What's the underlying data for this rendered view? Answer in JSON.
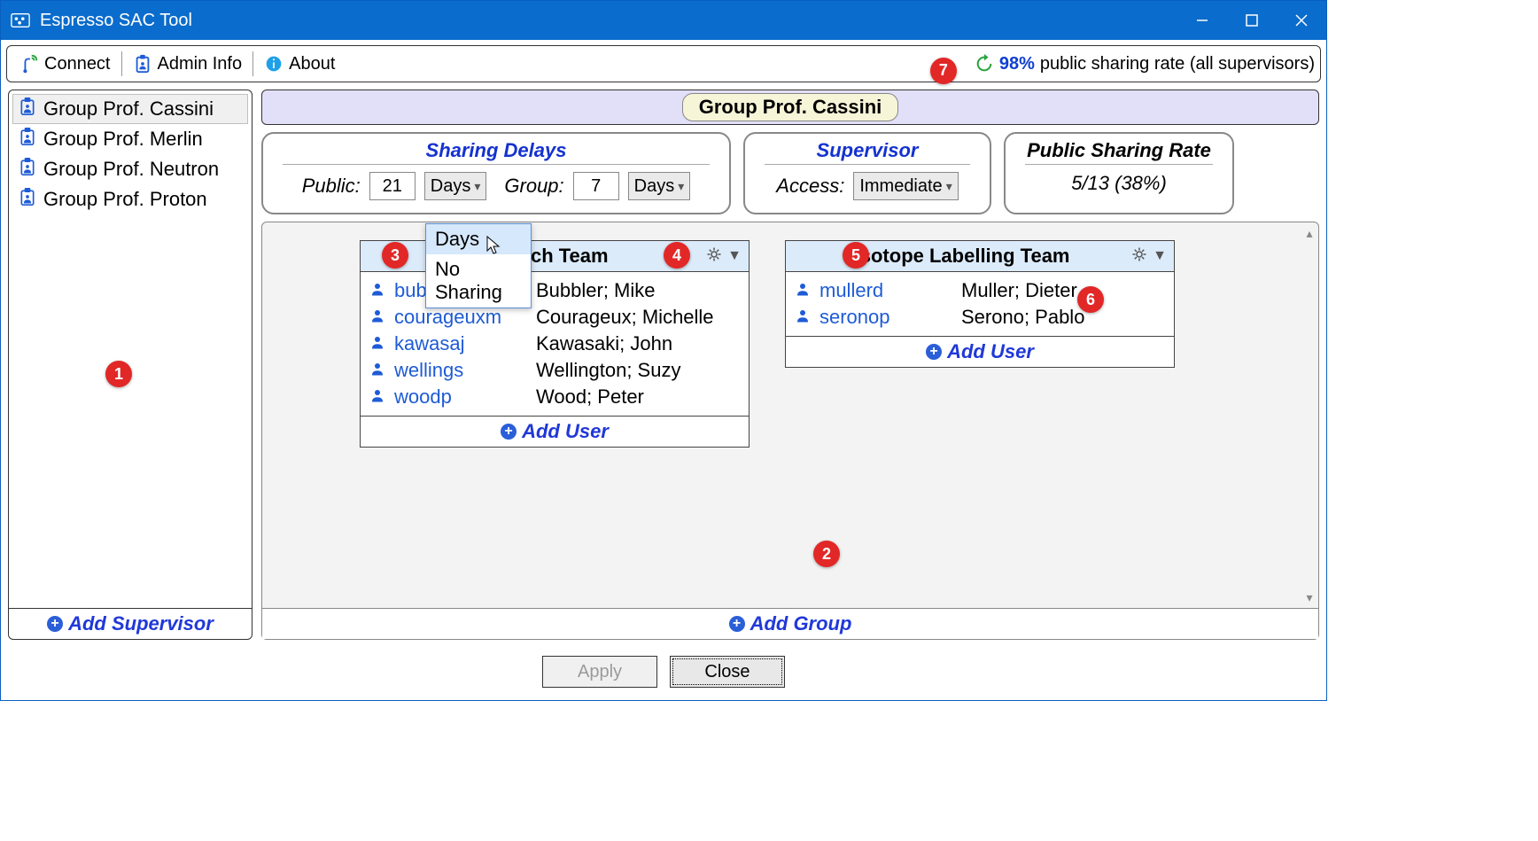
{
  "window": {
    "title": "Espresso SAC Tool"
  },
  "toolbar": {
    "connect": "Connect",
    "admin": "Admin Info",
    "about": "About",
    "rate_pct": "98%",
    "rate_tail": "public sharing rate (all supervisors)"
  },
  "sidebar": {
    "items": [
      {
        "label": "Group Prof. Cassini",
        "selected": true
      },
      {
        "label": "Group Prof. Merlin",
        "selected": false
      },
      {
        "label": "Group Prof. Neutron",
        "selected": false
      },
      {
        "label": "Group Prof. Proton",
        "selected": false
      }
    ],
    "add_label": "Add Supervisor"
  },
  "group": {
    "name": "Group Prof. Cassini",
    "sharing": {
      "title": "Sharing Delays",
      "public_label": "Public:",
      "public_value": "21",
      "public_unit": "Days",
      "group_label": "Group:",
      "group_value": "7",
      "group_unit": "Days",
      "dropdown_options": [
        "Days",
        "No Sharing"
      ],
      "dropdown_selected": "Days"
    },
    "supervisor": {
      "title": "Supervisor",
      "access_label": "Access:",
      "access_value": "Immediate"
    },
    "psr": {
      "title": "Public Sharing Rate",
      "value": "5/13 (38%)"
    },
    "teams": [
      {
        "title": "Research Team",
        "members": [
          {
            "user": "bubblerm",
            "name": "Bubbler; Mike"
          },
          {
            "user": "courageuxm",
            "name": "Courageux; Michelle"
          },
          {
            "user": "kawasaj",
            "name": "Kawasaki; John"
          },
          {
            "user": "wellings",
            "name": "Wellington; Suzy"
          },
          {
            "user": "woodp",
            "name": "Wood; Peter"
          }
        ]
      },
      {
        "title": "Isotope Labelling Team",
        "members": [
          {
            "user": "mullerd",
            "name": "Muller; Dieter"
          },
          {
            "user": "seronop",
            "name": "Serono; Pablo"
          }
        ]
      }
    ],
    "add_user_label": "Add User",
    "add_group_label": "Add Group"
  },
  "buttons": {
    "apply": "Apply",
    "close": "Close"
  },
  "callouts": [
    "1",
    "2",
    "3",
    "4",
    "5",
    "6",
    "7"
  ],
  "colors": {
    "titlebar": "#0a6ccc",
    "accent": "#1432d0",
    "link": "#1e5bd6",
    "callout": "#e22727",
    "header_bg": "#e2e0f8",
    "badge_bg": "#f7f5d8",
    "team_head_bg": "#dcebfa"
  }
}
